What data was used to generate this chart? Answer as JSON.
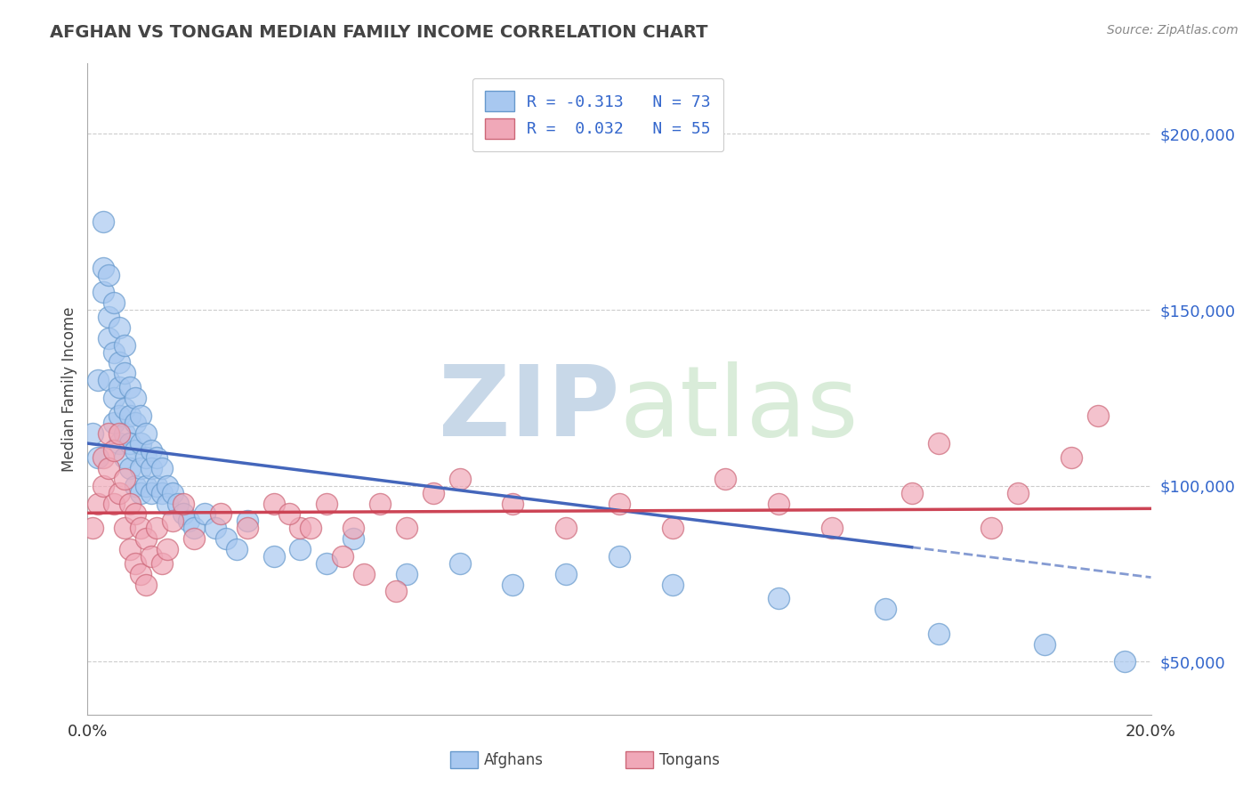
{
  "title": "AFGHAN VS TONGAN MEDIAN FAMILY INCOME CORRELATION CHART",
  "ylabel": "Median Family Income",
  "source": "Source: ZipAtlas.com",
  "xmin": 0.0,
  "xmax": 0.2,
  "ymin": 35000,
  "ymax": 220000,
  "yticks": [
    50000,
    100000,
    150000,
    200000
  ],
  "ytick_labels": [
    "$50,000",
    "$100,000",
    "$150,000",
    "$200,000"
  ],
  "xticks": [
    0.0,
    0.2
  ],
  "xtick_labels": [
    "0.0%",
    "20.0%"
  ],
  "afghan_color": "#a8c8f0",
  "afghan_edge": "#6699cc",
  "tongan_color": "#f0a8b8",
  "tongan_edge": "#cc6677",
  "blue_line_color": "#4466bb",
  "pink_line_color": "#cc4455",
  "watermark_color": "#c8d8e8",
  "blue_R": -0.313,
  "pink_R": 0.032,
  "blue_line_solid_end": 0.155,
  "afghans_x": [
    0.001,
    0.002,
    0.002,
    0.003,
    0.003,
    0.003,
    0.004,
    0.004,
    0.004,
    0.004,
    0.005,
    0.005,
    0.005,
    0.005,
    0.006,
    0.006,
    0.006,
    0.006,
    0.006,
    0.007,
    0.007,
    0.007,
    0.007,
    0.007,
    0.008,
    0.008,
    0.008,
    0.008,
    0.009,
    0.009,
    0.009,
    0.009,
    0.01,
    0.01,
    0.01,
    0.01,
    0.011,
    0.011,
    0.011,
    0.012,
    0.012,
    0.012,
    0.013,
    0.013,
    0.014,
    0.014,
    0.015,
    0.015,
    0.016,
    0.017,
    0.018,
    0.019,
    0.02,
    0.022,
    0.024,
    0.026,
    0.028,
    0.03,
    0.035,
    0.04,
    0.045,
    0.05,
    0.06,
    0.07,
    0.08,
    0.09,
    0.1,
    0.11,
    0.13,
    0.15,
    0.16,
    0.18,
    0.195
  ],
  "afghans_y": [
    115000,
    130000,
    108000,
    155000,
    175000,
    162000,
    148000,
    160000,
    142000,
    130000,
    138000,
    152000,
    125000,
    118000,
    135000,
    128000,
    145000,
    120000,
    112000,
    140000,
    132000,
    122000,
    115000,
    108000,
    128000,
    120000,
    112000,
    105000,
    125000,
    118000,
    110000,
    100000,
    120000,
    112000,
    105000,
    98000,
    115000,
    108000,
    100000,
    110000,
    105000,
    98000,
    108000,
    100000,
    105000,
    98000,
    100000,
    95000,
    98000,
    95000,
    92000,
    90000,
    88000,
    92000,
    88000,
    85000,
    82000,
    90000,
    80000,
    82000,
    78000,
    85000,
    75000,
    78000,
    72000,
    75000,
    80000,
    72000,
    68000,
    65000,
    58000,
    55000,
    50000
  ],
  "tongans_x": [
    0.001,
    0.002,
    0.003,
    0.003,
    0.004,
    0.004,
    0.005,
    0.005,
    0.006,
    0.006,
    0.007,
    0.007,
    0.008,
    0.008,
    0.009,
    0.009,
    0.01,
    0.01,
    0.011,
    0.011,
    0.012,
    0.013,
    0.014,
    0.015,
    0.016,
    0.018,
    0.02,
    0.025,
    0.03,
    0.035,
    0.04,
    0.045,
    0.05,
    0.055,
    0.06,
    0.065,
    0.07,
    0.08,
    0.09,
    0.1,
    0.11,
    0.12,
    0.13,
    0.14,
    0.155,
    0.16,
    0.17,
    0.175,
    0.185,
    0.19,
    0.038,
    0.042,
    0.048,
    0.052,
    0.058
  ],
  "tongans_y": [
    88000,
    95000,
    100000,
    108000,
    115000,
    105000,
    95000,
    110000,
    98000,
    115000,
    88000,
    102000,
    82000,
    95000,
    78000,
    92000,
    75000,
    88000,
    72000,
    85000,
    80000,
    88000,
    78000,
    82000,
    90000,
    95000,
    85000,
    92000,
    88000,
    95000,
    88000,
    95000,
    88000,
    95000,
    88000,
    98000,
    102000,
    95000,
    88000,
    95000,
    88000,
    102000,
    95000,
    88000,
    98000,
    112000,
    88000,
    98000,
    108000,
    120000,
    92000,
    88000,
    80000,
    75000,
    70000
  ],
  "legend_label_blue": "R = -0.313   N = 73",
  "legend_label_pink": "R =  0.032   N = 55",
  "legend_text_color": "#3366cc",
  "bottom_legend_labels": [
    "Afghans",
    "Tongans"
  ]
}
